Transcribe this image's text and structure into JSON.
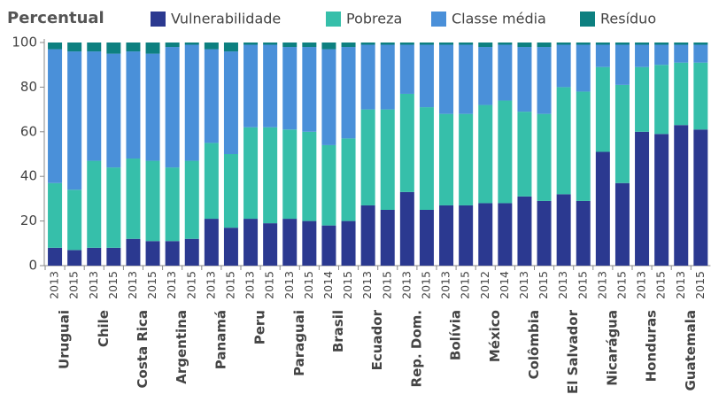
{
  "chart_data": {
    "type": "stacked_bar",
    "y_label": "Percentual",
    "categories": [
      "2013",
      "2015",
      "2013",
      "2015",
      "2013",
      "2015",
      "2013",
      "2015",
      "2013",
      "2015",
      "2013",
      "2015",
      "2013",
      "2015",
      "2014",
      "2015",
      "2013",
      "2015",
      "2013",
      "2015",
      "2013",
      "2015",
      "2012",
      "2014",
      "2013",
      "2015",
      "2013",
      "2015",
      "2013",
      "2015",
      "2013",
      "2015",
      "2013",
      "2015"
    ],
    "groups": [
      "Uruguai",
      "Chile",
      "Costa Rica",
      "Argentina",
      "Panamá",
      "Peru",
      "Paraguai",
      "Brasil",
      "Ecuador",
      "Rep. Dom.",
      "Bolívia",
      "México",
      "Colômbia",
      "El Salvador",
      "Nicarágua",
      "Honduras",
      "Guatemala"
    ],
    "series": [
      {
        "name": "Vulnerabilidade",
        "color": "#2b3990",
        "values": [
          8,
          7,
          8,
          8,
          12,
          11,
          11,
          12,
          21,
          17,
          21,
          19,
          21,
          20,
          18,
          20,
          27,
          25,
          33,
          25,
          27,
          27,
          28,
          28,
          31,
          29,
          32,
          29,
          51,
          37,
          60,
          59,
          63,
          61
        ]
      },
      {
        "name": "Pobreza",
        "color": "#36bfaa",
        "values": [
          29,
          27,
          39,
          36,
          36,
          36,
          33,
          35,
          34,
          33,
          41,
          43,
          40,
          40,
          36,
          37,
          43,
          45,
          44,
          46,
          41,
          41,
          44,
          46,
          38,
          39,
          48,
          49,
          38,
          44,
          29,
          31,
          28,
          30
        ]
      },
      {
        "name": "Classe média",
        "color": "#4a90d9",
        "values": [
          60,
          62,
          49,
          51,
          48,
          48,
          54,
          52,
          42,
          46,
          37,
          37,
          37,
          38,
          43,
          41,
          29,
          29,
          22,
          28,
          31,
          31,
          26,
          25,
          29,
          30,
          19,
          21,
          10,
          18,
          10,
          9,
          8,
          8
        ]
      },
      {
        "name": "Resíduo",
        "color": "#0d8080",
        "values": [
          3,
          4,
          4,
          5,
          4,
          5,
          2,
          1,
          3,
          4,
          1,
          1,
          2,
          2,
          3,
          2,
          1,
          1,
          1,
          1,
          1,
          1,
          2,
          1,
          2,
          2,
          1,
          1,
          1,
          1,
          1,
          1,
          1,
          1
        ]
      }
    ],
    "ylim": [
      0,
      100
    ],
    "yticks": [
      0,
      20,
      40,
      60,
      80,
      100
    ],
    "legend": "top"
  }
}
